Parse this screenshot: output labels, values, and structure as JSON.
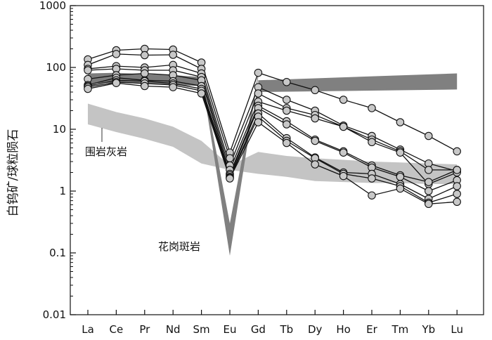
{
  "chart_data": {
    "type": "line",
    "yscale": "log",
    "ylim": [
      0.01,
      1000
    ],
    "ylabel": "白钨矿/球粒陨石",
    "xlabel": "",
    "title": "",
    "grid": false,
    "categories": [
      "La",
      "Ce",
      "Pr",
      "Nd",
      "Sm",
      "Eu",
      "Gd",
      "Tb",
      "Dy",
      "Ho",
      "Er",
      "Tm",
      "Yb",
      "Lu"
    ],
    "y_ticks": [
      {
        "value": 0.01,
        "label": "0.01"
      },
      {
        "value": 0.1,
        "label": "0.1"
      },
      {
        "value": 1,
        "label": "1"
      },
      {
        "value": 10,
        "label": "10"
      },
      {
        "value": 100,
        "label": "100"
      },
      {
        "value": 1000,
        "label": "1000"
      }
    ],
    "series": [
      {
        "values": [
          135,
          190,
          200,
          195,
          120,
          4.2,
          82,
          58,
          43,
          30,
          22,
          13,
          7.8,
          4.4
        ]
      },
      {
        "values": [
          110,
          165,
          158,
          160,
          95,
          3.4,
          48,
          30,
          20,
          11.5,
          7.8,
          4.7,
          2.8,
          2.1
        ]
      },
      {
        "values": [
          95,
          105,
          100,
          110,
          80,
          2.6,
          38,
          22,
          17,
          11,
          6.8,
          4.4,
          2.2,
          2.2
        ]
      },
      {
        "values": [
          90,
          95,
          90,
          90,
          70,
          2.2,
          28,
          20,
          15,
          11,
          6.2,
          4.2,
          1.3,
          2.0
        ]
      },
      {
        "values": [
          65,
          75,
          80,
          75,
          62,
          1.9,
          24,
          13.5,
          6.8,
          4.4,
          2.6,
          1.8,
          1.4,
          2.2
        ]
      },
      {
        "values": [
          52,
          68,
          62,
          60,
          50,
          1.8,
          22,
          12,
          6.5,
          4.2,
          2.4,
          1.7,
          1.0,
          1.5
        ]
      },
      {
        "values": [
          50,
          62,
          60,
          55,
          45,
          1.7,
          18,
          7.2,
          3.5,
          2.0,
          1.9,
          1.3,
          0.75,
          1.2
        ]
      },
      {
        "values": [
          48,
          58,
          55,
          52,
          42,
          1.65,
          16,
          6.5,
          3.4,
          1.9,
          1.6,
          1.2,
          0.65,
          0.9
        ]
      },
      {
        "values": [
          45,
          56,
          50,
          48,
          38,
          1.6,
          13,
          6.0,
          2.7,
          1.75,
          0.85,
          1.1,
          0.62,
          0.67
        ]
      }
    ],
    "bands": [
      {
        "name": "围岩灰岩",
        "upper": [
          26,
          19,
          15,
          11,
          6.5,
          2.6,
          4.3,
          3.7,
          3.4,
          3.2,
          3.0,
          2.9,
          2.8,
          2.7
        ],
        "lower": [
          12,
          9,
          7,
          5.2,
          2.8,
          2.2,
          1.9,
          1.7,
          1.45,
          1.4,
          1.35,
          1.35,
          1.3,
          1.3
        ],
        "color": "#c4c4c4"
      },
      {
        "name": "花岗斑岩",
        "color": "#808080",
        "wedge": {
          "upper": [
            80,
            0.3,
            80
          ],
          "lower": [
            70,
            0.09,
            70
          ]
        },
        "left": {
          "upper": [
            80,
            82,
            78,
            75,
            70
          ],
          "lower": [
            55,
            57,
            55,
            52,
            50
          ]
        },
        "right": {
          "upper": [
            62,
            80
          ],
          "lower": [
            40,
            44
          ]
        }
      }
    ],
    "annotations": [
      "围岩灰岩",
      "花岗斑岩"
    ]
  }
}
